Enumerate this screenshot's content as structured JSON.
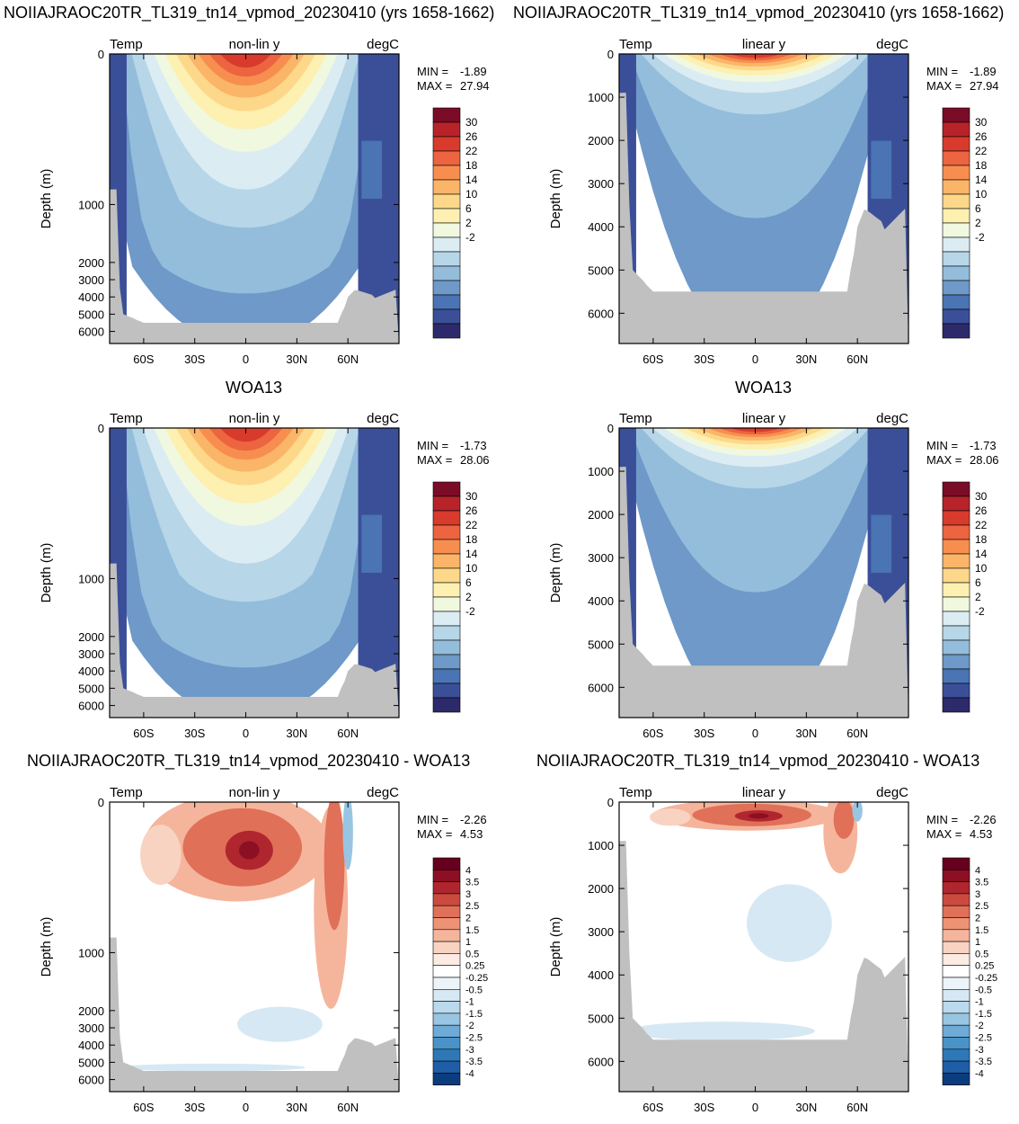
{
  "titles": {
    "row1_left": "NOIIAJRAOC20TR_TL319_tn14_vpmod_20230410 (yrs 1658-1662)",
    "row1_right": "NOIIAJRAOC20TR_TL319_tn14_vpmod_20230410 (yrs 1658-1662)",
    "row2_left": "WOA13",
    "row2_right": "WOA13",
    "row3_left": "NOIIAJRAOC20TR_TL319_tn14_vpmod_20230410 - WOA13",
    "row3_right": "NOIIAJRAOC20TR_TL319_tn14_vpmod_20230410 - WOA13"
  },
  "colors": {
    "temp_palette": [
      "#2c2a6b",
      "#3b4f99",
      "#4a74b4",
      "#6e99c8",
      "#93bddb",
      "#b7d6e8",
      "#dbecf3",
      "#f1f8e0",
      "#fdf0b0",
      "#fdd88a",
      "#fbb568",
      "#f78e4f",
      "#ec6440",
      "#d83b2c",
      "#b8232a",
      "#7b0c28"
    ],
    "diff_palette": [
      "#0b3d7e",
      "#1f5ea6",
      "#2e78b8",
      "#4993c8",
      "#6eabd6",
      "#98c5e2",
      "#bbd9ec",
      "#d6e8f3",
      "#ecf4f9",
      "#ffffff",
      "#fcebe3",
      "#f9d3c1",
      "#f5b59c",
      "#ee9276",
      "#e07058",
      "#cb4a3f",
      "#b0262e",
      "#8c0f24",
      "#67001f"
    ],
    "land": "#c0c0c0"
  },
  "chart_data": [
    {
      "type": "heatmap",
      "name": "model-temp-nonlin",
      "corner_left": "Temp",
      "corner_center": "non-lin y",
      "corner_right": "degC",
      "ylabel": "Depth (m)",
      "y_scale": "non-linear (stretched upper ocean)",
      "yticks": [
        "0",
        "1000",
        "2000",
        "3000",
        "4000",
        "5000",
        "6000"
      ],
      "xticks": [
        "60S",
        "30S",
        "0",
        "30N",
        "60N"
      ],
      "xlim": [
        -80,
        90
      ],
      "ylim": [
        6700,
        0
      ],
      "min_label": "MIN =",
      "min_value": "-1.89",
      "max_label": "MAX =",
      "max_value": "27.94",
      "colorbar_labels": [
        "30",
        "26",
        "22",
        "18",
        "14",
        "10",
        "6",
        "2",
        "-2"
      ]
    },
    {
      "type": "heatmap",
      "name": "model-temp-linear",
      "corner_left": "Temp",
      "corner_center": "linear y",
      "corner_right": "degC",
      "ylabel": "Depth (m)",
      "y_scale": "linear",
      "yticks": [
        "0",
        "1000",
        "2000",
        "3000",
        "4000",
        "5000",
        "6000"
      ],
      "xticks": [
        "60S",
        "30S",
        "0",
        "30N",
        "60N"
      ],
      "xlim": [
        -80,
        90
      ],
      "ylim": [
        6700,
        0
      ],
      "min_label": "MIN =",
      "min_value": "-1.89",
      "max_label": "MAX =",
      "max_value": "27.94",
      "colorbar_labels": [
        "30",
        "26",
        "22",
        "18",
        "14",
        "10",
        "6",
        "2",
        "-2"
      ]
    },
    {
      "type": "heatmap",
      "name": "woa13-temp-nonlin",
      "corner_left": "Temp",
      "corner_center": "non-lin y",
      "corner_right": "degC",
      "ylabel": "Depth (m)",
      "y_scale": "non-linear (stretched upper ocean)",
      "yticks": [
        "0",
        "1000",
        "2000",
        "3000",
        "4000",
        "5000",
        "6000"
      ],
      "xticks": [
        "60S",
        "30S",
        "0",
        "30N",
        "60N"
      ],
      "xlim": [
        -80,
        90
      ],
      "ylim": [
        6700,
        0
      ],
      "min_label": "MIN =",
      "min_value": "-1.73",
      "max_label": "MAX =",
      "max_value": "28.06",
      "colorbar_labels": [
        "30",
        "26",
        "22",
        "18",
        "14",
        "10",
        "6",
        "2",
        "-2"
      ]
    },
    {
      "type": "heatmap",
      "name": "woa13-temp-linear",
      "corner_left": "Temp",
      "corner_center": "linear y",
      "corner_right": "degC",
      "ylabel": "Depth (m)",
      "y_scale": "linear",
      "yticks": [
        "0",
        "1000",
        "2000",
        "3000",
        "4000",
        "5000",
        "6000"
      ],
      "xticks": [
        "60S",
        "30S",
        "0",
        "30N",
        "60N"
      ],
      "xlim": [
        -80,
        90
      ],
      "ylim": [
        6700,
        0
      ],
      "min_label": "MIN =",
      "min_value": "-1.73",
      "max_label": "MAX =",
      "max_value": "28.06",
      "colorbar_labels": [
        "30",
        "26",
        "22",
        "18",
        "14",
        "10",
        "6",
        "2",
        "-2"
      ]
    },
    {
      "type": "heatmap",
      "name": "diff-temp-nonlin",
      "corner_left": "Temp",
      "corner_center": "non-lin y",
      "corner_right": "degC",
      "ylabel": "Depth (m)",
      "y_scale": "non-linear (stretched upper ocean)",
      "yticks": [
        "0",
        "1000",
        "2000",
        "3000",
        "4000",
        "5000",
        "6000"
      ],
      "xticks": [
        "60S",
        "30S",
        "0",
        "30N",
        "60N"
      ],
      "xlim": [
        -80,
        90
      ],
      "ylim": [
        6700,
        0
      ],
      "min_label": "MIN =",
      "min_value": "-2.26",
      "max_label": "MAX =",
      "max_value": "4.53",
      "colorbar_labels": [
        "4",
        "3.5",
        "3",
        "2.5",
        "2",
        "1.5",
        "1",
        "0.5",
        "0.25",
        "-0.25",
        "-0.5",
        "-1",
        "-1.5",
        "-2",
        "-2.5",
        "-3",
        "-3.5",
        "-4"
      ]
    },
    {
      "type": "heatmap",
      "name": "diff-temp-linear",
      "corner_left": "Temp",
      "corner_center": "linear y",
      "corner_right": "degC",
      "ylabel": "Depth (m)",
      "y_scale": "linear",
      "yticks": [
        "0",
        "1000",
        "2000",
        "3000",
        "4000",
        "5000",
        "6000"
      ],
      "xticks": [
        "60S",
        "30S",
        "0",
        "30N",
        "60N"
      ],
      "xlim": [
        -80,
        90
      ],
      "ylim": [
        6700,
        0
      ],
      "min_label": "MIN =",
      "min_value": "-2.26",
      "max_label": "MAX =",
      "max_value": "4.53",
      "colorbar_labels": [
        "4",
        "3.5",
        "3",
        "2.5",
        "2",
        "1.5",
        "1",
        "0.5",
        "0.25",
        "-0.25",
        "-0.5",
        "-1",
        "-1.5",
        "-2",
        "-2.5",
        "-3",
        "-3.5",
        "-4"
      ]
    }
  ]
}
